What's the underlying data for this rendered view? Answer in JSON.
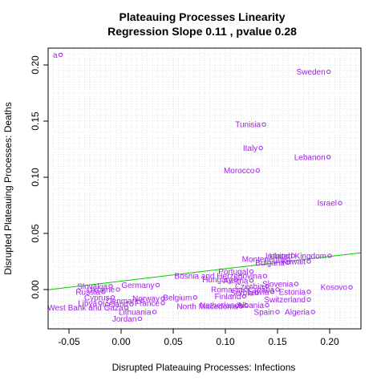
{
  "chart_data": {
    "type": "scatter",
    "title": "Plateauing Processes Linearity",
    "subtitle": "Regression Slope 0.11 , pvalue 0.28",
    "xlabel": "Disrupted Plateauing Processes: Infections",
    "ylabel": "Disrupted Plateauing Processes: Deaths",
    "xlim": [
      -0.07,
      0.23
    ],
    "ylim": [
      -0.035,
      0.215
    ],
    "xticks": [
      -0.05,
      0.0,
      0.05,
      0.1,
      0.15,
      0.2
    ],
    "xtick_labels": [
      "-0.05",
      "0.00",
      "0.05",
      "0.10",
      "0.15",
      "0.20"
    ],
    "yticks": [
      0.0,
      0.05,
      0.1,
      0.15,
      0.2
    ],
    "ytick_labels": [
      "0.00",
      "0.05",
      "0.10",
      "0.15",
      "0.20"
    ],
    "grid": true,
    "point_color": "#a020f0",
    "line_color": "#00cc00",
    "regression": {
      "slope": 0.11,
      "intercept": 0.0075
    },
    "points": [
      {
        "label": "a",
        "x": -0.058,
        "y": 0.209
      },
      {
        "label": "Sweden",
        "x": 0.199,
        "y": 0.194
      },
      {
        "label": "Tunisia",
        "x": 0.137,
        "y": 0.147
      },
      {
        "label": "Italy",
        "x": 0.134,
        "y": 0.126
      },
      {
        "label": "Lebanon",
        "x": 0.199,
        "y": 0.118
      },
      {
        "label": "Morocco",
        "x": 0.131,
        "y": 0.106
      },
      {
        "label": "Israel",
        "x": 0.21,
        "y": 0.077
      },
      {
        "label": "Ireland",
        "x": 0.165,
        "y": 0.03
      },
      {
        "label": "United Kingdom",
        "x": 0.2,
        "y": 0.03
      },
      {
        "label": "Montenegro",
        "x": 0.16,
        "y": 0.027
      },
      {
        "label": "Bulgaria",
        "x": 0.16,
        "y": 0.024
      },
      {
        "label": "Kuwait",
        "x": 0.18,
        "y": 0.025
      },
      {
        "label": "Portugal",
        "x": 0.125,
        "y": 0.016
      },
      {
        "label": "Bosnia and Herzegovina",
        "x": 0.138,
        "y": 0.012
      },
      {
        "label": "Hungary",
        "x": 0.11,
        "y": 0.009
      },
      {
        "label": "Austria",
        "x": 0.125,
        "y": 0.008
      },
      {
        "label": "Germany",
        "x": 0.035,
        "y": 0.004
      },
      {
        "label": "Czechia",
        "x": 0.14,
        "y": 0.003
      },
      {
        "label": "Slovenia",
        "x": 0.168,
        "y": 0.005
      },
      {
        "label": "Kosovo",
        "x": 0.22,
        "y": 0.002
      },
      {
        "label": "Croatia",
        "x": 0.15,
        "y": 0.0
      },
      {
        "label": "Estonia",
        "x": 0.18,
        "y": -0.002
      },
      {
        "label": "Romania",
        "x": 0.12,
        "y": 0.0
      },
      {
        "label": "Latvia",
        "x": 0.145,
        "y": -0.002
      },
      {
        "label": "Serbia",
        "x": 0.13,
        "y": -0.003
      },
      {
        "label": "Finland",
        "x": 0.118,
        "y": -0.006
      },
      {
        "label": "Switzerland",
        "x": 0.18,
        "y": -0.009
      },
      {
        "label": "Belgium",
        "x": 0.071,
        "y": -0.007
      },
      {
        "label": "Norway",
        "x": 0.04,
        "y": -0.008
      },
      {
        "label": "Ukraine",
        "x": -0.003,
        "y": 0.0
      },
      {
        "label": "Slovakia",
        "x": -0.01,
        "y": 0.003
      },
      {
        "label": "Russia",
        "x": -0.017,
        "y": -0.002
      },
      {
        "label": "Cyprus",
        "x": -0.008,
        "y": -0.007
      },
      {
        "label": "Denmark",
        "x": 0.02,
        "y": -0.01
      },
      {
        "label": "Iceland",
        "x": 0.01,
        "y": -0.013
      },
      {
        "label": "France",
        "x": 0.04,
        "y": -0.012
      },
      {
        "label": "Libya",
        "x": -0.02,
        "y": -0.012
      },
      {
        "label": "West Bank and Gaza",
        "x": 0.005,
        "y": -0.016
      },
      {
        "label": "Lithuania",
        "x": 0.032,
        "y": -0.02
      },
      {
        "label": "Jordan",
        "x": 0.018,
        "y": -0.026
      },
      {
        "label": "North Macedonia",
        "x": 0.115,
        "y": -0.015
      },
      {
        "label": "Netherlands",
        "x": 0.12,
        "y": -0.014
      },
      {
        "label": "Albania",
        "x": 0.14,
        "y": -0.014
      },
      {
        "label": "Spain",
        "x": 0.15,
        "y": -0.02
      },
      {
        "label": "Algeria",
        "x": 0.184,
        "y": -0.02
      }
    ]
  }
}
